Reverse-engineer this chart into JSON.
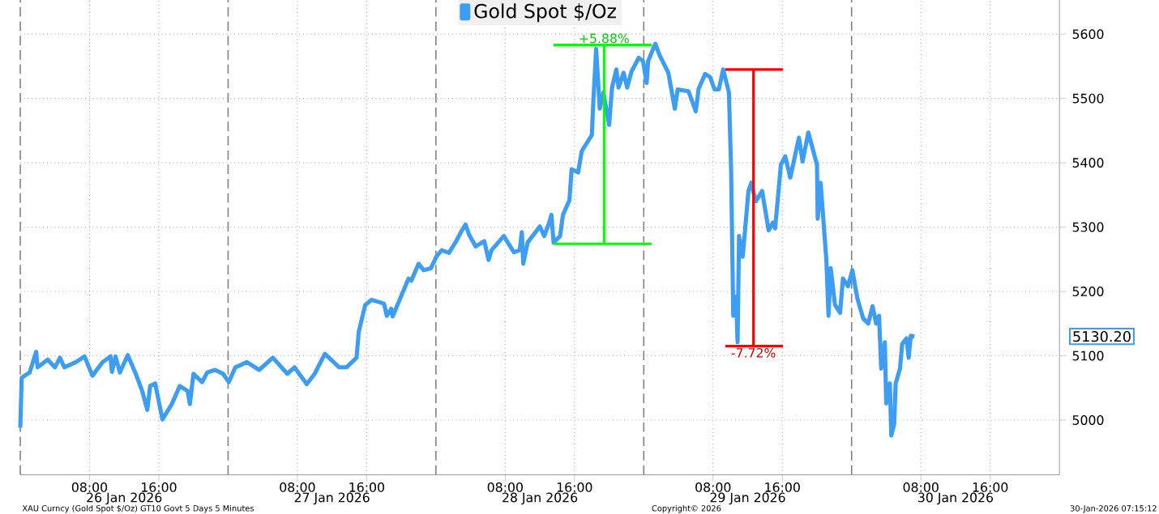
{
  "chart_data": {
    "type": "line",
    "x": [
      "2026-01-26T00:00",
      "2026-01-26T00:10",
      "2026-01-26T01:05",
      "2026-01-26T01:50",
      "2026-01-26T02:00",
      "2026-01-26T03:10",
      "2026-01-26T04:00",
      "2026-01-26T04:35",
      "2026-01-26T05:05",
      "2026-01-26T06:25",
      "2026-01-26T07:25",
      "2026-01-26T08:20",
      "2026-01-26T09:30",
      "2026-01-26T10:25",
      "2026-01-26T10:35",
      "2026-01-26T11:00",
      "2026-01-26T11:30",
      "2026-01-26T12:25",
      "2026-01-26T13:20",
      "2026-01-26T14:05",
      "2026-01-26T14:40",
      "2026-01-26T15:00",
      "2026-01-26T15:35",
      "2026-01-26T16:25",
      "2026-01-26T17:30",
      "2026-01-26T18:25",
      "2026-01-26T19:20",
      "2026-01-26T19:35",
      "2026-01-26T20:00",
      "2026-01-26T21:00",
      "2026-01-26T21:35",
      "2026-01-26T22:30",
      "2026-01-26T23:25",
      "2026-01-27T00:05",
      "2026-01-27T00:50",
      "2026-01-27T02:10",
      "2026-01-27T03:35",
      "2026-01-27T05:10",
      "2026-01-27T06:50",
      "2026-01-27T07:40",
      "2026-01-27T09:05",
      "2026-01-27T10:00",
      "2026-01-27T11:10",
      "2026-01-27T12:50",
      "2026-01-27T13:40",
      "2026-01-27T14:50",
      "2026-01-27T15:05",
      "2026-01-27T15:50",
      "2026-01-27T16:35",
      "2026-01-27T18:00",
      "2026-01-27T18:20",
      "2026-01-27T18:50",
      "2026-01-27T19:00",
      "2026-01-27T20:05",
      "2026-01-27T20:50",
      "2026-01-27T21:10",
      "2026-01-27T22:00",
      "2026-01-27T22:35",
      "2026-01-27T23:25",
      "2026-01-28T00:05",
      "2026-01-28T00:40",
      "2026-01-28T01:30",
      "2026-01-28T02:20",
      "2026-01-28T03:00",
      "2026-01-28T03:25",
      "2026-01-28T03:50",
      "2026-01-28T04:35",
      "2026-01-28T05:35",
      "2026-01-28T06:05",
      "2026-01-28T06:25",
      "2026-01-28T07:50",
      "2026-01-28T09:00",
      "2026-01-28T09:40",
      "2026-01-28T09:55",
      "2026-01-28T10:05",
      "2026-01-28T10:35",
      "2026-01-28T12:00",
      "2026-01-28T12:30",
      "2026-01-28T13:05",
      "2026-01-28T13:20",
      "2026-01-28T13:35",
      "2026-01-28T14:20",
      "2026-01-28T14:40",
      "2026-01-28T15:25",
      "2026-01-28T15:40",
      "2026-01-28T16:25",
      "2026-01-28T16:50",
      "2026-01-28T18:00",
      "2026-01-28T18:10",
      "2026-01-28T18:30",
      "2026-01-28T18:55",
      "2026-01-28T19:20",
      "2026-01-28T20:00",
      "2026-01-28T20:20",
      "2026-01-28T20:50",
      "2026-01-28T21:05",
      "2026-01-28T21:40",
      "2026-01-28T22:05",
      "2026-01-28T22:35",
      "2026-01-28T23:25",
      "2026-01-28T23:55",
      "2026-01-29T00:20",
      "2026-01-29T00:30",
      "2026-01-29T01:20",
      "2026-01-29T01:50",
      "2026-01-29T02:50",
      "2026-01-29T03:35",
      "2026-01-29T03:55",
      "2026-01-29T05:10",
      "2026-01-29T06:00",
      "2026-01-29T06:20",
      "2026-01-29T07:05",
      "2026-01-29T07:40",
      "2026-01-29T08:10",
      "2026-01-29T08:40",
      "2026-01-29T09:10",
      "2026-01-29T09:50",
      "2026-01-29T10:05",
      "2026-01-29T10:20",
      "2026-01-29T10:40",
      "2026-01-29T10:50",
      "2026-01-29T11:00",
      "2026-01-29T11:25",
      "2026-01-29T11:40",
      "2026-01-29T12:05",
      "2026-01-29T12:25",
      "2026-01-29T12:55",
      "2026-01-29T13:40",
      "2026-01-29T14:25",
      "2026-01-29T14:55",
      "2026-01-29T15:10",
      "2026-01-29T15:50",
      "2026-01-29T16:20",
      "2026-01-29T16:55",
      "2026-01-29T17:55",
      "2026-01-29T18:20",
      "2026-01-29T19:00",
      "2026-01-29T20:00",
      "2026-01-29T20:05",
      "2026-01-29T20:25",
      "2026-01-29T21:05",
      "2026-01-29T21:20",
      "2026-01-29T21:35",
      "2026-01-29T22:05",
      "2026-01-29T22:40",
      "2026-01-29T23:00",
      "2026-01-29T23:35",
      "2026-01-30T00:05",
      "2026-01-30T00:40",
      "2026-01-30T01:20",
      "2026-01-30T01:55",
      "2026-01-30T02:25",
      "2026-01-30T02:50",
      "2026-01-30T03:10",
      "2026-01-30T03:25",
      "2026-01-30T03:50",
      "2026-01-30T04:00",
      "2026-01-30T04:25",
      "2026-01-30T04:35",
      "2026-01-30T04:55",
      "2026-01-30T05:05",
      "2026-01-30T05:35",
      "2026-01-30T05:50",
      "2026-01-30T06:20",
      "2026-01-30T06:35",
      "2026-01-30T06:50",
      "2026-01-30T07:15"
    ],
    "series": [
      {
        "name": "Gold Spot $/Oz",
        "color": "#3d9df5",
        "values": [
          4988,
          5066,
          5074,
          5106,
          5082,
          5094,
          5082,
          5097,
          5082,
          5090,
          5099,
          5069,
          5090,
          5099,
          5075,
          5099,
          5074,
          5101,
          5072,
          5045,
          5016,
          5053,
          5057,
          5001,
          5025,
          5053,
          5045,
          5025,
          5072,
          5059,
          5074,
          5078,
          5072,
          5059,
          5082,
          5090,
          5078,
          5097,
          5072,
          5082,
          5056,
          5072,
          5103,
          5082,
          5082,
          5097,
          5137,
          5179,
          5187,
          5181,
          5162,
          5173,
          5161,
          5196,
          5220,
          5217,
          5243,
          5233,
          5236,
          5255,
          5264,
          5260,
          5278,
          5295,
          5304,
          5288,
          5270,
          5278,
          5249,
          5264,
          5286,
          5261,
          5264,
          5292,
          5243,
          5276,
          5301,
          5286,
          5307,
          5319,
          5276,
          5286,
          5319,
          5342,
          5390,
          5385,
          5418,
          5443,
          5493,
          5577,
          5484,
          5509,
          5459,
          5517,
          5545,
          5517,
          5540,
          5517,
          5542,
          5563,
          5558,
          5524,
          5558,
          5585,
          5567,
          5540,
          5484,
          5514,
          5511,
          5480,
          5515,
          5538,
          5533,
          5514,
          5514,
          5545,
          5509,
          5390,
          5162,
          5192,
          5121,
          5286,
          5254,
          5291,
          5356,
          5369,
          5340,
          5356,
          5295,
          5307,
          5298,
          5397,
          5410,
          5377,
          5439,
          5402,
          5447,
          5397,
          5313,
          5369,
          5249,
          5162,
          5236,
          5179,
          5167,
          5220,
          5208,
          5233,
          5189,
          5158,
          5150,
          5177,
          5150,
          5162,
          5080,
          5121,
          5026,
          5057,
          4976,
          4994,
          5057,
          5080,
          5118,
          5127,
          5097,
          5131,
          5130
        ]
      },
      {
        "type": "line",
        "color": "#00ff00",
        "x": [
          "2026-01-28T13:35",
          "2026-01-29T00:55"
        ],
        "values": [
          5274,
          5274
        ]
      },
      {
        "type": "line",
        "color": "#00ff00",
        "x": [
          "2026-01-28T19:25",
          "2026-01-28T19:25"
        ],
        "values": [
          5274,
          5583
        ]
      },
      {
        "type": "line",
        "color": "#00ff00",
        "x": [
          "2026-01-28T13:35",
          "2026-01-29T00:55"
        ],
        "values": [
          5583,
          5583
        ]
      },
      {
        "type": "line",
        "color": "#ff0000",
        "x": [
          "2026-01-29T09:25",
          "2026-01-29T16:05"
        ],
        "values": [
          5545,
          5545
        ]
      },
      {
        "type": "line",
        "color": "#ff0000",
        "x": [
          "2026-01-29T12:40",
          "2026-01-29T12:40"
        ],
        "values": [
          5545,
          5115
        ]
      },
      {
        "type": "line",
        "color": "#ff0000",
        "x": [
          "2026-01-29T09:25",
          "2026-01-29T16:05"
        ],
        "values": [
          5115,
          5115
        ]
      }
    ],
    "xlim": [
      "2026-01-26T00:00",
      "2026-01-31T00:00"
    ],
    "ylim": [
      4915,
      5653
    ],
    "xticks": [
      {
        "value": "2026-01-26T08:00",
        "label": "08:00"
      },
      {
        "value": "2026-01-26T16:00",
        "label": "16:00"
      },
      {
        "value": "2026-01-27T08:00",
        "label": "08:00"
      },
      {
        "value": "2026-01-27T16:00",
        "label": "16:00"
      },
      {
        "value": "2026-01-28T08:00",
        "label": "08:00"
      },
      {
        "value": "2026-01-28T16:00",
        "label": "16:00"
      },
      {
        "value": "2026-01-29T08:00",
        "label": "08:00"
      },
      {
        "value": "2026-01-29T16:00",
        "label": "16:00"
      },
      {
        "value": "2026-01-30T08:00",
        "label": "08:00"
      },
      {
        "value": "2026-01-30T16:00",
        "label": "16:00"
      }
    ],
    "yticks": [
      5000,
      5100,
      5200,
      5300,
      5400,
      5500,
      5600
    ],
    "grid": true,
    "legend": "top",
    "ref_lines": [
      {
        "axis": "x",
        "value": "2026-01-26T00:00",
        "color": "#808080",
        "line_style": "dashed"
      },
      {
        "axis": "x",
        "value": "2026-01-27T00:00",
        "color": "#808080",
        "line_style": "dashed"
      },
      {
        "axis": "x",
        "value": "2026-01-28T00:00",
        "color": "#808080",
        "line_style": "dashed"
      },
      {
        "axis": "x",
        "value": "2026-01-29T00:00",
        "color": "#808080",
        "line_style": "dashed"
      },
      {
        "axis": "x",
        "value": "2026-01-30T00:00",
        "color": "#808080",
        "line_style": "dashed"
      }
    ],
    "annotations": [
      "26 Jan 2026",
      "27 Jan 2026",
      "28 Jan 2026",
      "29 Jan 2026",
      "30 Jan 2026",
      {
        "text": "+5.88%",
        "x": "2026-01-28T19:25",
        "y": 5583
      },
      {
        "text": "-7.72%",
        "x": "2026-01-29T12:40",
        "y": 5115
      },
      "5130.20",
      "XAU Curncy (Gold Spot  $/Oz) GT10  Govt 5 Days 5 Minutes",
      "Copyright© 2026",
      "30-Jan-2026 07:15:12"
    ]
  }
}
